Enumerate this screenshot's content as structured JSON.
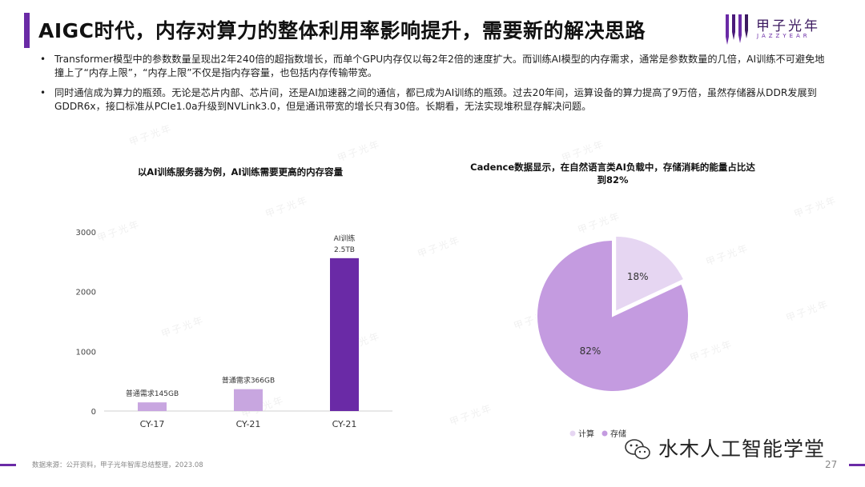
{
  "title": "AIGC时代，内存对算力的整体利用率影响提升，需要新的解决思路",
  "logo": {
    "name": "甲子光年",
    "sub": "JAZZYEAR"
  },
  "bullets": [
    "Transformer模型中的参数数量呈现出2年240倍的超指数增长，而单个GPU内存仅以每2年2倍的速度扩大。而训练AI模型的内存需求，通常是参数数量的几倍，AI训练不可避免地撞上了“内存上限”，“内存上限”不仅是指内存容量，也包括内存传输带宽。",
    "同时通信成为算力的瓶颈。无论是芯片内部、芯片间，还是AI加速器之间的通信，都已成为AI训练的瓶颈。过去20年间，运算设备的算力提高了9万倍，虽然存储器从DDR发展到GDDR6x，接口标准从PCIe1.0a升级到NVLink3.0，但是通讯带宽的增长只有30倍。长期看，无法实现堆积显存解决问题。"
  ],
  "bullet_symbol": "•",
  "footer": {
    "source": "数据来源：公开资料，甲子光年智库总结整理，2023.08",
    "page": "27"
  },
  "watermark_text": "水木人工智能学堂",
  "bg_watermark": "甲子光年",
  "colors": {
    "accent": "#6a2aa6",
    "bar_light": "#c8a6e0",
    "bar_dark": "#6a2aa6",
    "pie_large": "#c49be0",
    "pie_small": "#e6d6f2"
  },
  "chart_data": [
    {
      "type": "bar",
      "title": "以AI训练服务器为例，AI训练需要更高的内存容量",
      "categories": [
        "CY-17",
        "CY-21",
        "CY-21"
      ],
      "values": [
        145,
        366,
        2560
      ],
      "data_labels": [
        "普通需求145GB",
        "普通需求366GB",
        "AI训练\n2.5TB"
      ],
      "ylim": [
        0,
        3000
      ],
      "yticks": [
        0,
        1000,
        2000,
        3000
      ],
      "grid": false
    },
    {
      "type": "pie",
      "title": "Cadence数据显示，在自然语言类AI负载中，存储消耗的能量占比达到82%",
      "labels": [
        "计算",
        "存储"
      ],
      "values": [
        18,
        82
      ],
      "data_labels": [
        "18%",
        "82%"
      ],
      "legend": "bottom"
    }
  ]
}
